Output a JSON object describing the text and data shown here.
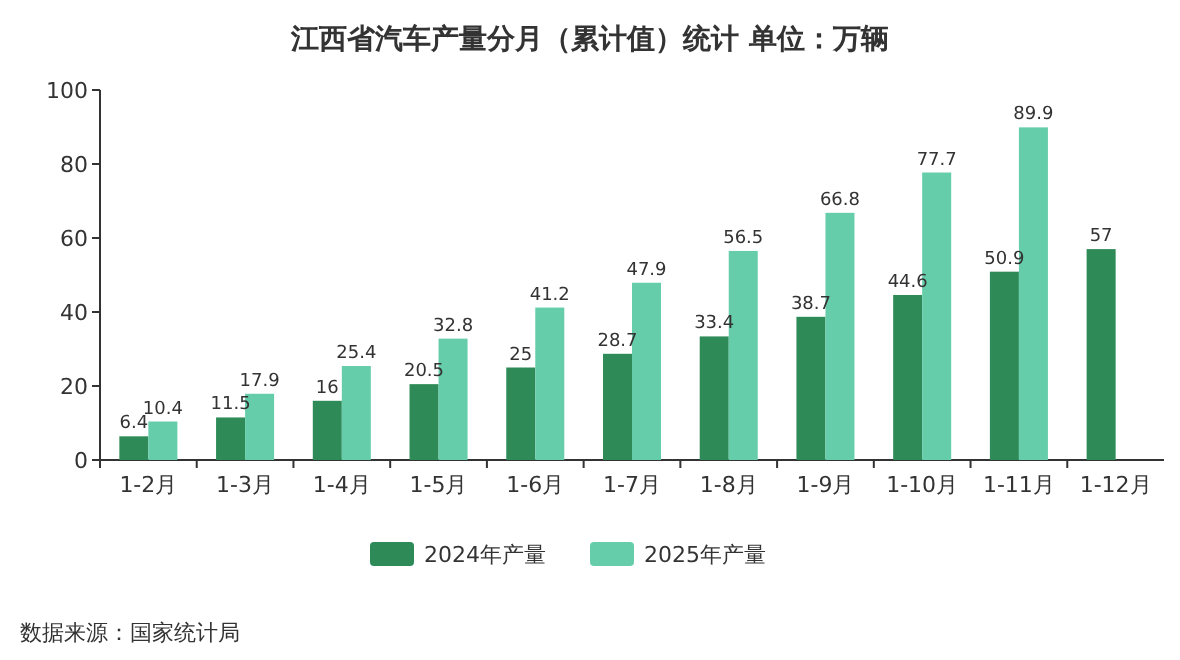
{
  "chart_data": {
    "type": "bar",
    "title": "江西省汽车产量分月（累计值）统计 单位：万辆",
    "annotations": [
      "数据来源：国家统计局"
    ],
    "categories": [
      "1-2月",
      "1-3月",
      "1-4月",
      "1-5月",
      "1-6月",
      "1-7月",
      "1-8月",
      "1-9月",
      "1-10月",
      "1-11月",
      "1-12月"
    ],
    "series": [
      {
        "name": "2024年产量",
        "color": "#2e8b57",
        "values": [
          6.4,
          11.5,
          16,
          20.5,
          25,
          28.7,
          33.4,
          38.7,
          44.6,
          50.9,
          57
        ]
      },
      {
        "name": "2025年产量",
        "color": "#66cdaa",
        "values": [
          10.4,
          17.9,
          25.4,
          32.8,
          41.2,
          47.9,
          56.5,
          66.8,
          77.7,
          89.9,
          null
        ]
      }
    ],
    "ylim": [
      0,
      100
    ],
    "yticks": [
      0,
      20,
      40,
      60,
      80,
      100
    ],
    "legend": "bottom",
    "data_labels": true
  }
}
